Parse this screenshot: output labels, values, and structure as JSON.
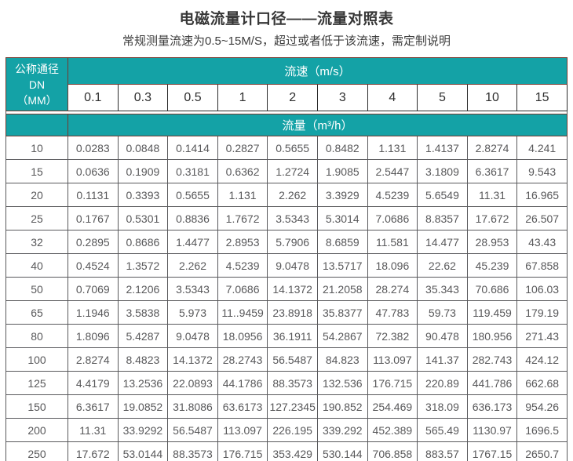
{
  "page": {
    "title": "电磁流量计口径——流量对照表",
    "subtitle": "常规测量流速为0.5~15M/S，超过或者低于该流速，需定制说明"
  },
  "colors": {
    "header_teal": "#14a2a6",
    "header_border": "#74392f",
    "cell_border": "#59595c",
    "cell_text": "#58585a",
    "header_text": "#ffffff"
  },
  "table": {
    "corner_header": {
      "line1": "公称通径DN",
      "line2": "（MM）"
    },
    "velocity_header": "流速（m/s）",
    "flow_header": "流量（m³/h）",
    "velocity_values": [
      "0.1",
      "0.3",
      "0.5",
      "1",
      "2",
      "3",
      "4",
      "5",
      "10",
      "15"
    ],
    "rows": [
      {
        "dn": "10",
        "values": [
          "0.0283",
          "0.0848",
          "0.1414",
          "0.2827",
          "0.5655",
          "0.8482",
          "1.131",
          "1.4137",
          "2.8274",
          "4.241"
        ]
      },
      {
        "dn": "15",
        "values": [
          "0.0636",
          "0.1909",
          "0.3181",
          "0.6362",
          "1.2724",
          "1.9085",
          "2.5447",
          "3.1809",
          "6.3617",
          "9.543"
        ]
      },
      {
        "dn": "20",
        "values": [
          "0.1131",
          "0.3393",
          "0.5655",
          "1.131",
          "2.262",
          "3.3929",
          "4.5239",
          "5.6549",
          "11.31",
          "16.965"
        ]
      },
      {
        "dn": "25",
        "values": [
          "0.1767",
          "0.5301",
          "0.8836",
          "1.7672",
          "3.5343",
          "5.3014",
          "7.0686",
          "8.8357",
          "17.672",
          "26.507"
        ]
      },
      {
        "dn": "32",
        "values": [
          "0.2895",
          "0.8686",
          "1.4477",
          "2.8953",
          "5.7906",
          "8.6859",
          "11.581",
          "14.477",
          "28.953",
          "43.43"
        ]
      },
      {
        "dn": "40",
        "values": [
          "0.4524",
          "1.3572",
          "2.262",
          "4.5239",
          "9.0478",
          "13.5717",
          "18.096",
          "22.62",
          "45.239",
          "67.858"
        ]
      },
      {
        "dn": "50",
        "values": [
          "0.7069",
          "2.1206",
          "3.5343",
          "7.0686",
          "14.1372",
          "21.2058",
          "28.274",
          "35.343",
          "70.686",
          "106.03"
        ]
      },
      {
        "dn": "65",
        "values": [
          "1.1946",
          "3.5838",
          "5.973",
          "11..9459",
          "23.8918",
          "35.8377",
          "47.783",
          "59.73",
          "119.459",
          "179.19"
        ]
      },
      {
        "dn": "80",
        "values": [
          "1.8096",
          "5.4287",
          "9.0478",
          "18.0956",
          "36.1911",
          "54.2867",
          "72.382",
          "90.478",
          "180.956",
          "271.43"
        ]
      },
      {
        "dn": "100",
        "values": [
          "2.8274",
          "8.4823",
          "14.1372",
          "28.2743",
          "56.5487",
          "84.823",
          "113.097",
          "141.37",
          "282.743",
          "424.12"
        ]
      },
      {
        "dn": "125",
        "values": [
          "4.4179",
          "13.2536",
          "22.0893",
          "44.1786",
          "88.3573",
          "132.536",
          "176.715",
          "220.89",
          "441.786",
          "662.68"
        ]
      },
      {
        "dn": "150",
        "values": [
          "6.3617",
          "19.0852",
          "31.8086",
          "63.6173",
          "127.2345",
          "190.852",
          "254.469",
          "318.09",
          "636.173",
          "954.26"
        ]
      },
      {
        "dn": "200",
        "values": [
          "11.31",
          "33.9292",
          "56.5487",
          "113.097",
          "226.195",
          "339.292",
          "452.389",
          "565.49",
          "1130.97",
          "1696.5"
        ]
      },
      {
        "dn": "250",
        "values": [
          "17.672",
          "53.0144",
          "88.3573",
          "176.715",
          "353.429",
          "530.144",
          "706.858",
          "883.57",
          "1767.15",
          "2650.7"
        ]
      }
    ]
  }
}
